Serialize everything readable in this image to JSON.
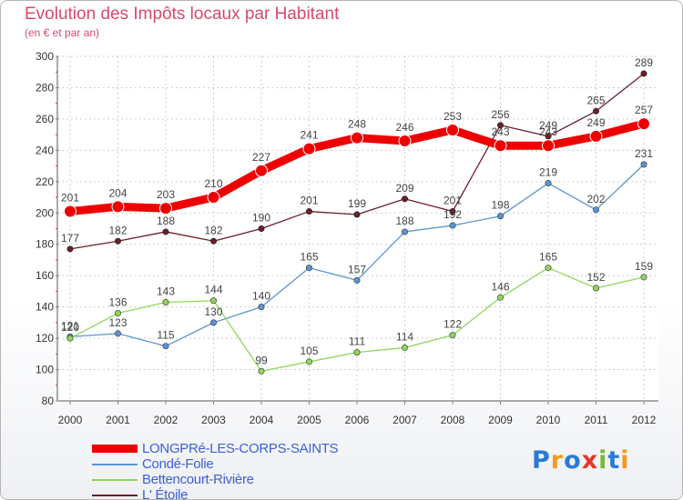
{
  "header": {
    "title": "Evolution des Impôts locaux par Habitant",
    "subtitle": "(en € et par an)"
  },
  "logo": {
    "text": "Proxiti",
    "colors": [
      "#2b7bd6",
      "#f29a1f",
      "#2b7bd6",
      "#e8352b",
      "#7ab83a",
      "#2b7bd6",
      "#f29a1f"
    ]
  },
  "chart_data": {
    "type": "line",
    "title": "Evolution des Impôts locaux par Habitant",
    "subtitle": "(en € et par an)",
    "xlabel": "",
    "ylabel": "",
    "x": [
      "2000",
      "2001",
      "2002",
      "2003",
      "2004",
      "2005",
      "2006",
      "2007",
      "2008",
      "2009",
      "2010",
      "2011",
      "2012"
    ],
    "ylim": [
      80,
      300
    ],
    "yticks": [
      "80",
      "100",
      "120",
      "140",
      "160",
      "180",
      "200",
      "220",
      "240",
      "260",
      "280",
      "300"
    ],
    "grid": true,
    "legend_position": "bottom-left",
    "series": [
      {
        "name": "LONGPRé-LES-CORPS-SAINTS",
        "color": "#ee0000",
        "values": [
          201,
          204,
          203,
          210,
          227,
          241,
          248,
          246,
          253,
          243,
          243,
          249,
          257
        ]
      },
      {
        "name": "Condé-Folie",
        "color": "#5b95d2",
        "values": [
          121,
          123,
          115,
          130,
          140,
          165,
          157,
          188,
          192,
          198,
          219,
          202,
          231
        ]
      },
      {
        "name": "Bettencourt-Rivière",
        "color": "#8fd65c",
        "values": [
          120,
          136,
          143,
          144,
          99,
          105,
          111,
          114,
          122,
          146,
          165,
          152,
          159
        ]
      },
      {
        "name": "L' Étoile",
        "color": "#6b1f2a",
        "values": [
          177,
          182,
          188,
          182,
          190,
          201,
          199,
          209,
          201,
          256,
          249,
          265,
          289
        ]
      }
    ]
  }
}
